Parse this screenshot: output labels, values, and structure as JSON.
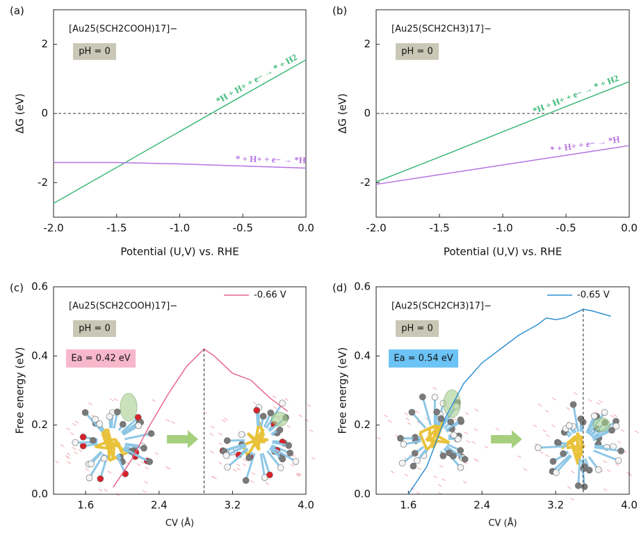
{
  "chart_data": [
    {
      "type": "line",
      "panel_label": "(a)",
      "formula": "[Au25(SCH2COOH)17]−",
      "condition": "pH = 0",
      "xlabel": "Potential (U,V) vs. RHE",
      "ylabel": "ΔG (eV)",
      "x": [
        -2.0,
        -1.5,
        -1.0,
        -0.5,
        0.0
      ],
      "series": [
        {
          "name": "*H + H+ + e− → * + H2",
          "color": "#3cb878",
          "values": [
            -2.6,
            -1.56,
            -0.52,
            0.52,
            1.55
          ]
        },
        {
          "name": "* + H+ + e− → *H",
          "color": "#b673e0",
          "values": [
            -1.42,
            -1.42,
            -1.46,
            -1.52,
            -1.58
          ]
        }
      ],
      "xlim": [
        -2.0,
        0.0
      ],
      "ylim": [
        -3,
        3
      ],
      "xticks": [
        {
          "value": -2.0,
          "label": "-2.0"
        },
        {
          "value": -1.5,
          "label": "-1.5"
        },
        {
          "value": -1.0,
          "label": "-1.0"
        },
        {
          "value": -0.5,
          "label": "-0.5"
        },
        {
          "value": 0.0,
          "label": "0.0"
        }
      ],
      "yticks": [
        -2,
        0,
        2
      ],
      "zero_line": true
    },
    {
      "type": "line",
      "panel_label": "(b)",
      "formula": "[Au25(SCH2CH3)17]−",
      "condition": "pH = 0",
      "xlabel": "Potential (U,V) vs. RHE",
      "ylabel": "ΔG (eV)",
      "x": [
        -2.0,
        -1.5,
        -1.0,
        -0.5,
        0.0
      ],
      "series": [
        {
          "name": "*H + H+ + e− → * + H2",
          "color": "#3cb878",
          "values": [
            -1.98,
            -1.26,
            -0.53,
            0.2,
            0.92
          ]
        },
        {
          "name": "* + H+ + e− → *H",
          "color": "#b673e0",
          "values": [
            -2.05,
            -1.77,
            -1.49,
            -1.21,
            -0.93
          ]
        }
      ],
      "xlim": [
        -2.0,
        0.0
      ],
      "ylim": [
        -3,
        3
      ],
      "xticks": [
        {
          "value": -2.0,
          "label": "-2.0"
        },
        {
          "value": -1.5,
          "label": "-1.5"
        },
        {
          "value": -1.0,
          "label": "-1.0"
        },
        {
          "value": -0.5,
          "label": "-0.5"
        },
        {
          "value": 0.0,
          "label": "0.0"
        }
      ],
      "yticks": [
        -2,
        0,
        2
      ],
      "zero_line": true
    },
    {
      "type": "line",
      "panel_label": "(c)",
      "formula": "[Au25(SCH2COOH)17]−",
      "condition": "pH = 0",
      "barrier": "Ea = 0.42 eV",
      "barrier_color": "#f7b8cc",
      "xlabel": "CV (Å)",
      "ylabel": "Free energy (eV)",
      "x": [
        1.9,
        2.1,
        2.3,
        2.5,
        2.7,
        2.89,
        3.0,
        3.2,
        3.4,
        3.6,
        3.8
      ],
      "series": [
        {
          "name": "-0.66 V",
          "color": "#e8668a",
          "values": [
            0.02,
            0.1,
            0.2,
            0.29,
            0.37,
            0.42,
            0.4,
            0.35,
            0.33,
            0.28,
            0.24
          ]
        }
      ],
      "peak_index": 5,
      "xlim": [
        1.25,
        4.0
      ],
      "ylim": [
        0,
        0.6
      ],
      "xticks": [
        1.6,
        2.4,
        3.2,
        {
          "value": 4.0,
          "label": "4.0"
        }
      ],
      "yticks": [
        {
          "value": 0,
          "label": "0.0"
        },
        {
          "value": 0.2,
          "label": "0.2"
        },
        {
          "value": 0.4,
          "label": "0.4"
        },
        {
          "value": 0.6,
          "label": "0.6"
        }
      ]
    },
    {
      "type": "line",
      "panel_label": "(d)",
      "formula": "[Au25(SCH2CH3)17]−",
      "condition": "pH = 0",
      "barrier": "Ea = 0.54 eV",
      "barrier_color": "#6cc3f5",
      "xlabel": "CV (Å)",
      "ylabel": "Free energy (eV)",
      "x": [
        1.6,
        1.8,
        2.0,
        2.2,
        2.4,
        2.6,
        2.8,
        3.0,
        3.1,
        3.2,
        3.3,
        3.5,
        3.6,
        3.8
      ],
      "series": [
        {
          "name": "-0.65 V",
          "color": "#2f8fd1",
          "values": [
            0.0,
            0.08,
            0.22,
            0.32,
            0.38,
            0.42,
            0.46,
            0.49,
            0.51,
            0.505,
            0.51,
            0.535,
            0.53,
            0.515
          ]
        }
      ],
      "peak_index": 11,
      "xlim": [
        1.25,
        4.0
      ],
      "ylim": [
        0,
        0.6
      ],
      "xticks": [
        1.6,
        2.4,
        3.2,
        {
          "value": 4.0,
          "label": "4.0"
        }
      ],
      "yticks": [
        {
          "value": 0,
          "label": "0.0"
        },
        {
          "value": 0.2,
          "label": "0.2"
        },
        {
          "value": 0.4,
          "label": "0.4"
        },
        {
          "value": 0.6,
          "label": "0.6"
        }
      ]
    }
  ]
}
